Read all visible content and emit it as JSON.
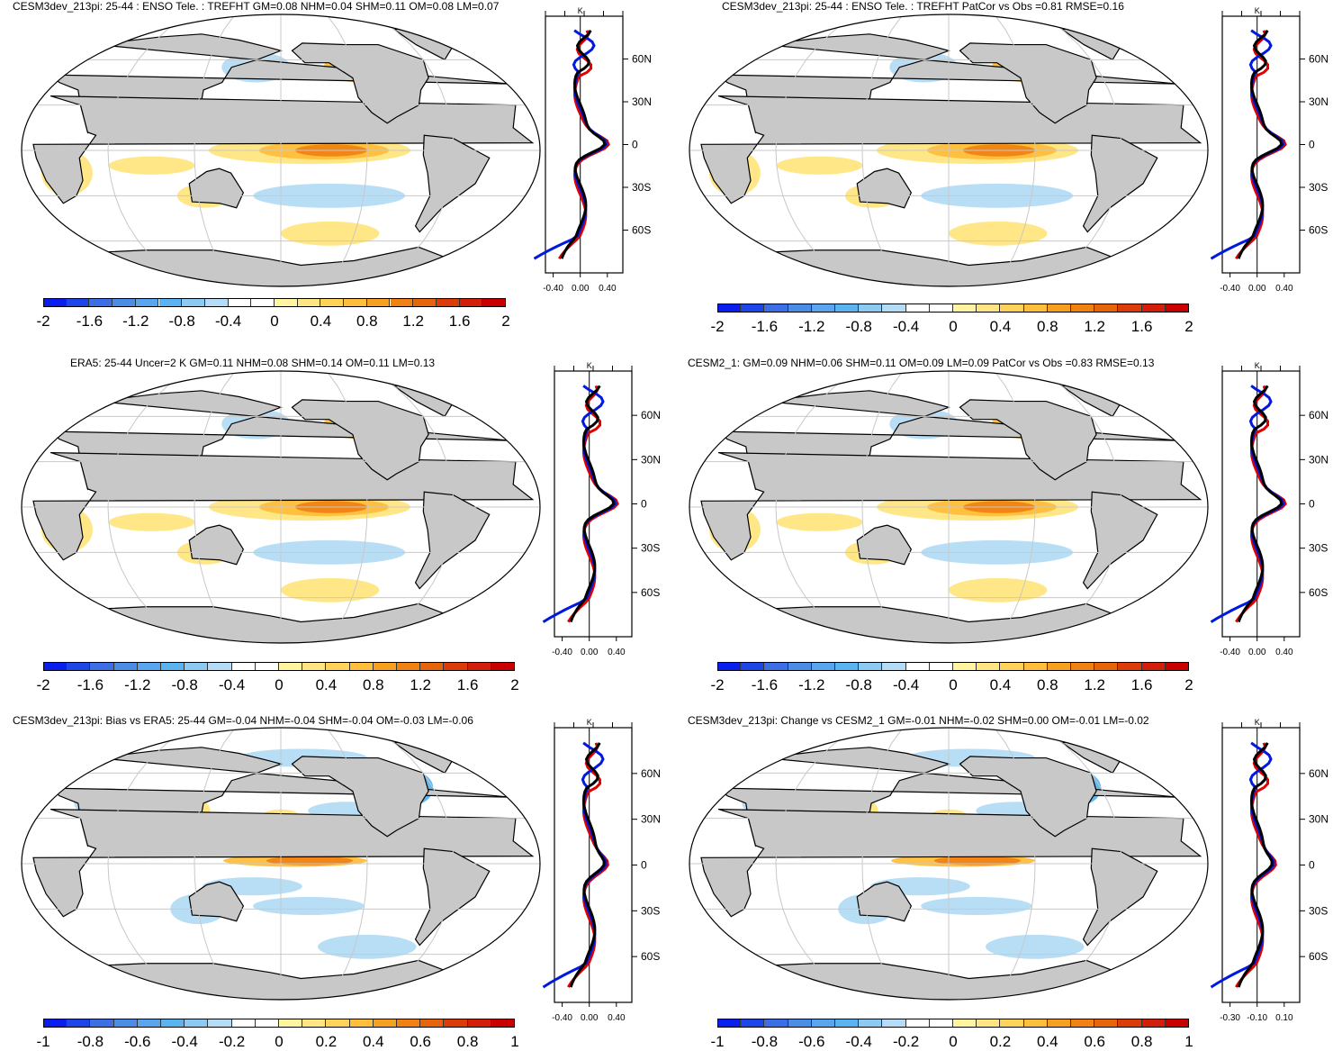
{
  "panels": [
    {
      "title": "CESM3dev_213pi: 25-44 : ENSO Tele. : TREFHT GM=0.08 NHM=0.04 SHM=0.11 OM=0.08 LM=0.07",
      "scale": "enso",
      "lat_labels": [
        "60N",
        "30N",
        "0",
        "30S",
        "60S"
      ],
      "units": "K",
      "x_ticks": [
        "-0.40",
        "0.00",
        "0.40"
      ],
      "colorbar_labels": [
        "-2",
        "-1.6",
        "-1.2",
        "-0.8",
        "-0.4",
        "0",
        "0.4",
        "0.8",
        "1.2",
        "1.6",
        "2"
      ]
    },
    {
      "title": "CESM3dev_213pi: 25-44 : ENSO Tele. : TREFHT PatCor vs Obs =0.81 RMSE=0.16",
      "scale": "enso",
      "lat_labels": [
        "60N",
        "30N",
        "0",
        "30S",
        "60S"
      ],
      "units": "K",
      "x_ticks": [
        "-0.40",
        "0.00",
        "0.40"
      ],
      "colorbar_labels": [
        "-2",
        "-1.6",
        "-1.2",
        "-0.8",
        "-0.4",
        "0",
        "0.4",
        "0.8",
        "1.2",
        "1.6",
        "2"
      ]
    },
    {
      "title": "ERA5: 25-44 Uncer=2 K GM=0.11 NHM=0.08 SHM=0.14 OM=0.11 LM=0.13",
      "scale": "enso",
      "lat_labels": [
        "60N",
        "30N",
        "0",
        "30S",
        "60S"
      ],
      "units": "K",
      "x_ticks": [
        "-0.40",
        "0.00",
        "0.40"
      ],
      "colorbar_labels": [
        "-2",
        "-1.6",
        "-1.2",
        "-0.8",
        "-0.4",
        "0",
        "0.4",
        "0.8",
        "1.2",
        "1.6",
        "2"
      ]
    },
    {
      "title": "CESM2_1: GM=0.09 NHM=0.06 SHM=0.11 OM=0.09 LM=0.09 PatCor vs Obs =0.83 RMSE=0.13",
      "scale": "enso",
      "lat_labels": [
        "60N",
        "30N",
        "0",
        "30S",
        "60S"
      ],
      "units": "K",
      "x_ticks": [
        "-0.40",
        "0.00",
        "0.40"
      ],
      "colorbar_labels": [
        "-2",
        "-1.6",
        "-1.2",
        "-0.8",
        "-0.4",
        "0",
        "0.4",
        "0.8",
        "1.2",
        "1.6",
        "2"
      ]
    },
    {
      "title": "CESM3dev_213pi: Bias vs ERA5: 25-44 GM=-0.04 NHM=-0.04 SHM=-0.04 OM=-0.03 LM=-0.06",
      "scale": "diff",
      "lat_labels": [
        "60N",
        "30N",
        "0",
        "30S",
        "60S"
      ],
      "units": "K",
      "x_ticks": [
        "-0.40",
        "0.00",
        "0.40"
      ],
      "colorbar_labels": [
        "-1",
        "-0.8",
        "-0.6",
        "-0.4",
        "-0.2",
        "0",
        "0.2",
        "0.4",
        "0.6",
        "0.8",
        "1"
      ]
    },
    {
      "title": "CESM3dev_213pi: Change vs CESM2_1 GM=-0.01 NHM=-0.02 SHM=0.00 OM=-0.01 LM=-0.02",
      "scale": "diff",
      "lat_labels": [
        "60N",
        "30N",
        "0",
        "30S",
        "60S"
      ],
      "units": "K",
      "x_ticks": [
        "-0.30",
        "-0.10",
        "0.10"
      ],
      "colorbar_labels": [
        "-1",
        "-0.8",
        "-0.6",
        "-0.4",
        "-0.2",
        "0",
        "0.2",
        "0.4",
        "0.6",
        "0.8",
        "1"
      ]
    }
  ],
  "colors": {
    "colorbar": [
      "#0a1ef0",
      "#1e46e6",
      "#3c6ee6",
      "#4a8ce6",
      "#5aa6ee",
      "#5ab4f0",
      "#8ccaf2",
      "#b4dcf6",
      "#ffffff",
      "#ffffff",
      "#fff5a0",
      "#ffe682",
      "#ffd25a",
      "#ffbe3c",
      "#f5a01e",
      "#f08214",
      "#e6640a",
      "#dc3c0a",
      "#d21e0a",
      "#c80000"
    ],
    "land": "#c8c8c8",
    "ocean": "#ffffff",
    "warm": "#ffe682",
    "warm_mid": "#ffbe3c",
    "warm_strong": "#f08214",
    "cool": "#b4dcf6",
    "cool_mid": "#5ab4f0",
    "cool_strong": "#3c6ee6",
    "model_line": "#e00000",
    "obs_line": "#000000",
    "alt_line": "#0018e0"
  }
}
